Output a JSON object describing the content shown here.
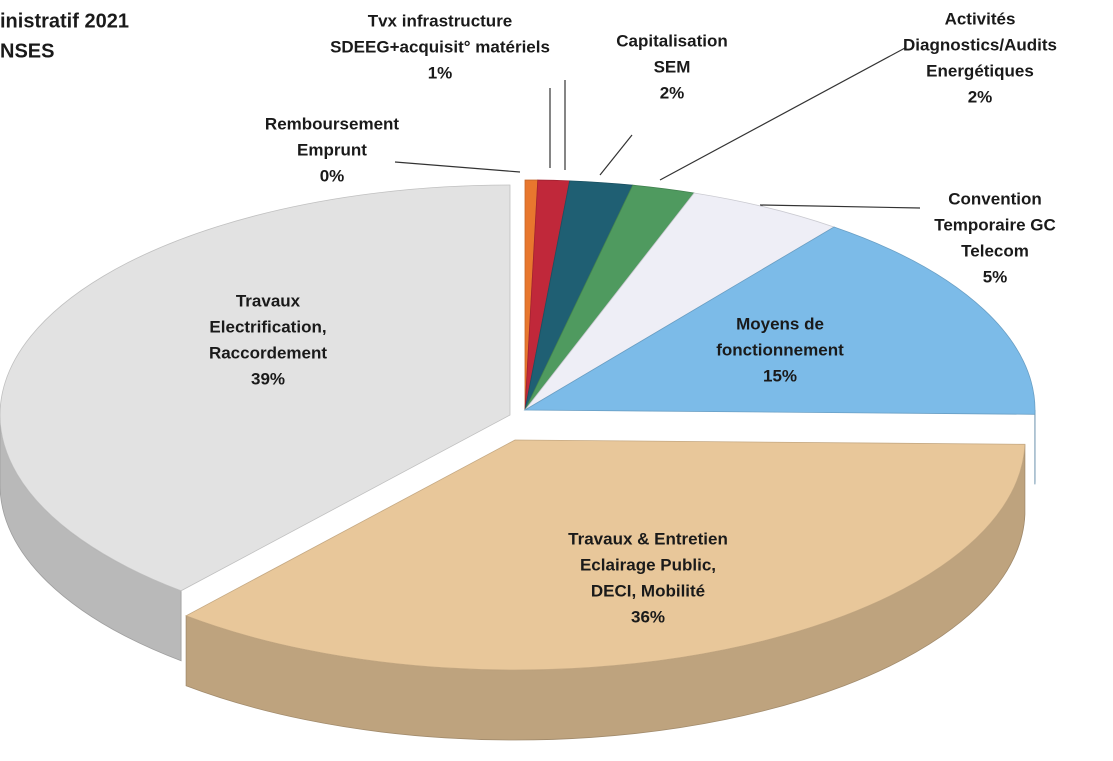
{
  "chart_data": {
    "type": "pie",
    "title": "inistratif 2021",
    "subtitle": "NSES",
    "labels": [
      [
        "Remboursement",
        "Emprunt"
      ],
      [
        "Tvx infrastructure",
        "SDEEG+acquisit° matériels"
      ],
      [
        "Capitalisation",
        "SEM"
      ],
      [
        "Activités",
        "Diagnostics/Audits",
        "Energétiques"
      ],
      [
        "Convention",
        "Temporaire GC",
        "Telecom"
      ],
      [
        "Moyens de",
        "fonctionnement"
      ],
      [
        "Travaux & Entretien",
        "Eclairage Public,",
        "DECI, Mobilité"
      ],
      [
        "Travaux",
        "Electrification,",
        "Raccordement"
      ]
    ],
    "values": [
      0.4,
      1,
      2,
      2,
      5,
      15,
      36,
      39
    ],
    "value_labels": [
      "0%",
      "1%",
      "2%",
      "2%",
      "5%",
      "15%",
      "36%",
      "39%"
    ],
    "colors": [
      "#e8772e",
      "#c0283a",
      "#1f5f73",
      "#4f9a5f",
      "#eeeef6",
      "#7cbbe8",
      "#e8c79a",
      "#e2e2e2"
    ]
  }
}
